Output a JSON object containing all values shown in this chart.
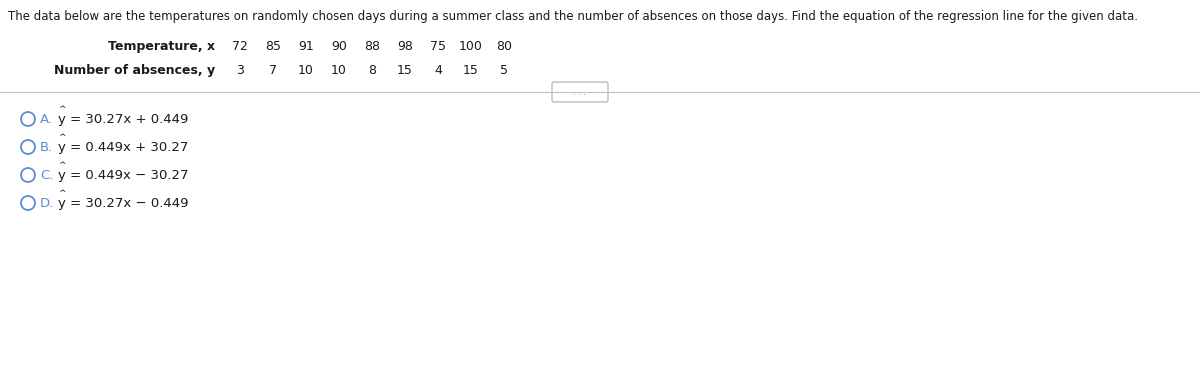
{
  "title": "The data below are the temperatures on randomly chosen days during a summer class and the number of absences on those days. Find the equation of the regression line for the given data.",
  "title_fontsize": 8.5,
  "row1_label": "Temperature, x",
  "row1_values": [
    "72",
    "85",
    "91",
    "90",
    "88",
    "98",
    "75",
    "100",
    "80"
  ],
  "row2_label": "Number of absences, y",
  "row2_values": [
    "3",
    "7",
    "10",
    "10",
    "8",
    "15",
    "4",
    "15",
    "5"
  ],
  "options": [
    {
      "letter": "A.",
      "equation": "y = 30.27x + 0.449"
    },
    {
      "letter": "B.",
      "equation": "y = 0.449x + 30.27"
    },
    {
      "letter": "C.",
      "equation": "y = 0.449x − 30.27"
    },
    {
      "letter": "D.",
      "equation": "y = 30.27x − 0.449"
    }
  ],
  "circle_color": "#5b8ed6",
  "text_color": "#1a1a1a",
  "bg_color": "#ffffff",
  "divider_color": "#c0c0c0",
  "option_fontsize": 9.5,
  "label_fontsize": 9.0,
  "data_fontsize": 9.0
}
